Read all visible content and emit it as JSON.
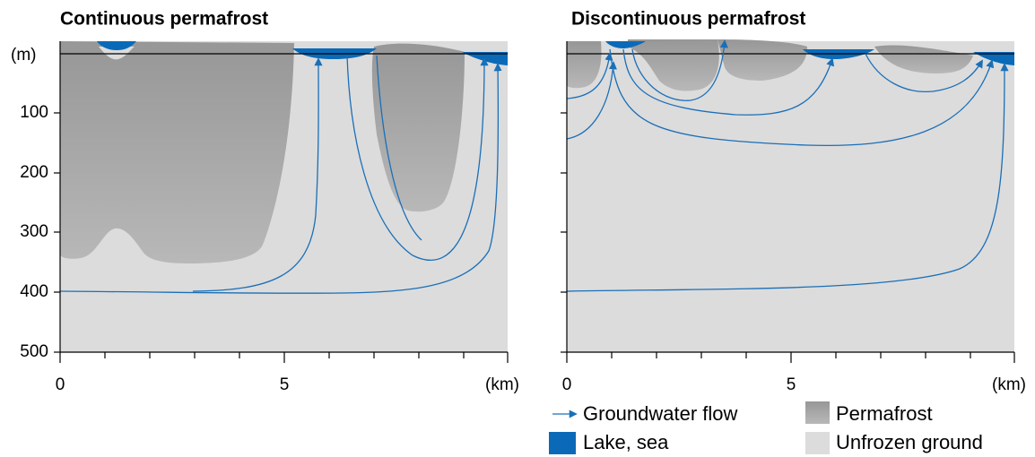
{
  "panels": [
    {
      "title": "Continuous permafrost",
      "x_labels": [
        "0",
        "5"
      ],
      "x_unit": "(km)"
    },
    {
      "title": "Discontinuous permafrost",
      "x_labels": [
        "0",
        "5"
      ],
      "x_unit": "(km)"
    }
  ],
  "depth_axis": {
    "unit": "(m)",
    "labels": [
      "100",
      "200",
      "300",
      "400",
      "500"
    ]
  },
  "legend": {
    "groundwater_flow": "Groundwater flow",
    "lake_sea": "Lake, sea",
    "permafrost": "Permafrost",
    "unfrozen_ground": "Unfrozen ground"
  }
}
